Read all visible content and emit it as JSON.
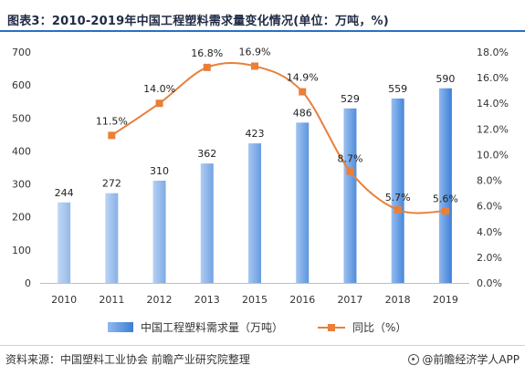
{
  "title": "图表3：2010-2019年中国工程塑料需求量变化情况(单位：万吨，%)",
  "source": "资料来源：中国塑料工业协会 前瞻产业研究院整理",
  "brand": "@前瞻经济学人APP",
  "colors": {
    "bar_light": "#8fb8ee",
    "bar_dark": "#3c7fd6",
    "line": "#e8803a",
    "rule": "#2b6fc4"
  },
  "chart_data": {
    "type": "bar+line",
    "categories": [
      "2010",
      "2011",
      "2012",
      "2013",
      "2015",
      "2016",
      "2017",
      "2018",
      "2019"
    ],
    "series": [
      {
        "name": "中国工程塑料需求量（万吨）",
        "type": "bar",
        "axis": "left",
        "values": [
          244,
          272,
          310,
          362,
          423,
          486,
          529,
          559,
          590
        ],
        "labels": [
          "244",
          "272",
          "310",
          "362",
          "423",
          "486",
          "529",
          "559",
          "590"
        ]
      },
      {
        "name": "同比（%）",
        "type": "line",
        "axis": "right",
        "values": [
          null,
          11.5,
          14.0,
          16.8,
          16.9,
          14.9,
          8.7,
          5.7,
          5.6
        ],
        "labels": [
          "",
          "11.5%",
          "14.0%",
          "16.8%",
          "16.9%",
          "14.9%",
          "8.7%",
          "5.7%",
          "5.6%"
        ]
      }
    ],
    "y_left": {
      "min": 0,
      "max": 700,
      "ticks": [
        "0",
        "100",
        "200",
        "300",
        "400",
        "500",
        "600",
        "700"
      ]
    },
    "y_right": {
      "min": 0,
      "max": 18,
      "ticks": [
        "0.0%",
        "2.0%",
        "4.0%",
        "6.0%",
        "8.0%",
        "10.0%",
        "12.0%",
        "14.0%",
        "16.0%",
        "18.0%"
      ]
    },
    "grid": false,
    "legend_position": "bottom"
  }
}
